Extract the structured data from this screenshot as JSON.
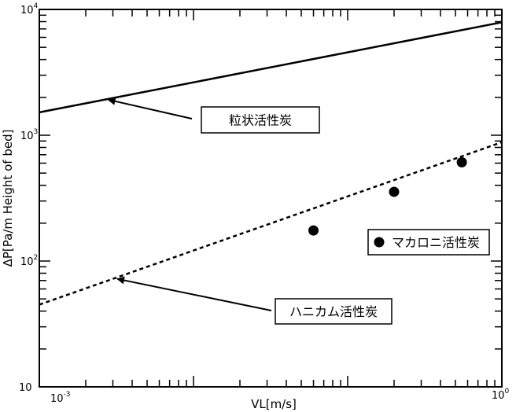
{
  "chart_data": {
    "type": "line",
    "xscale": "log",
    "yscale": "log",
    "xlim": [
      0.001,
      1
    ],
    "ylim": [
      10,
      10000
    ],
    "xlabel": "VL[m/s]",
    "ylabel": "ΔP[Pa/m Height of bed]",
    "x_ticks": [
      {
        "base": "10",
        "exp": "-3"
      },
      {
        "base": "10",
        "exp": "0"
      }
    ],
    "y_ticks": [
      {
        "value": 10,
        "base": "10",
        "exp": ""
      },
      {
        "value": 100,
        "base": "10",
        "exp": "2"
      },
      {
        "value": 1000,
        "base": "10",
        "exp": "3"
      },
      {
        "value": 10000,
        "base": "10",
        "exp": "4"
      }
    ],
    "series": [
      {
        "name": "粒状活性炭",
        "style": "solid",
        "x": [
          0.001,
          1
        ],
        "y": [
          1520,
          7900
        ]
      },
      {
        "name": "ハニカム活性炭",
        "style": "dashed",
        "x": [
          0.001,
          1
        ],
        "y": [
          45,
          880
        ]
      },
      {
        "name": "マカロニ活性炭",
        "style": "marker",
        "x": [
          0.06,
          0.2,
          0.55
        ],
        "y": [
          175,
          355,
          610
        ]
      }
    ],
    "annotations": [
      {
        "text": "粒状活性炭",
        "target_series": 0,
        "target_x": 0.0028
      },
      {
        "text": "ハニカム活性炭",
        "target_series": 1,
        "target_x": 0.0032
      },
      {
        "text": "マカロニ活性炭",
        "marker": "●"
      }
    ],
    "grid": false,
    "colors": {
      "line": "#000000",
      "background": "#ffffff"
    }
  }
}
